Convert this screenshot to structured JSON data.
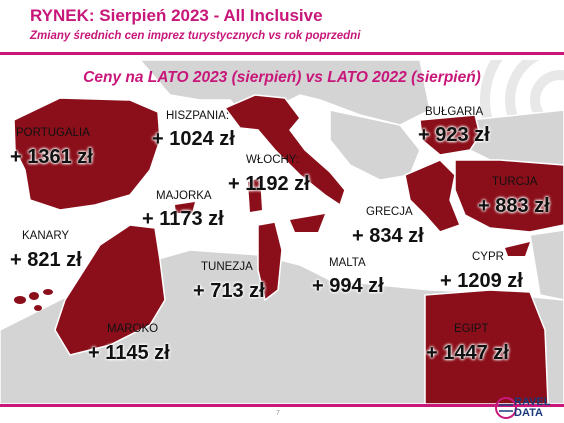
{
  "header": {
    "title": "RYNEK: Sierpień 2023 - All Inclusive",
    "subtitle": "Zmiany średnich cen imprez turystycznych vs rok poprzedni"
  },
  "map_title": "Ceny na LATO 2023 (sierpień) vs  LATO 2022 (sierpień)",
  "colors": {
    "accent": "#c8177a",
    "country": "#8b0f1a",
    "land": "#d4d4d4",
    "sea": "#ffffff"
  },
  "countries": [
    {
      "name": "PORTUGALIA",
      "value": "+ 1361 zł"
    },
    {
      "name": "HISZPANIA:",
      "value": "+ 1024 zł"
    },
    {
      "name": "WŁOCHY:",
      "value": "+ 1192 zł"
    },
    {
      "name": "MAJORKA",
      "value": "+ 1173 zł"
    },
    {
      "name": "BUŁGARIA",
      "value": "+ 923 zł"
    },
    {
      "name": "TURCJA",
      "value": "+ 883 zł"
    },
    {
      "name": "GRECJA",
      "value": "+ 834 zł"
    },
    {
      "name": "KANARY",
      "value": "+ 821 zł"
    },
    {
      "name": "TUNEZJA",
      "value": "+ 713 zł"
    },
    {
      "name": "MALTA",
      "value": "+ 994 zł"
    },
    {
      "name": "CYPR",
      "value": "+ 1209 zł"
    },
    {
      "name": "MAROKO",
      "value": "+ 1145 zł"
    },
    {
      "name": "EGIPT",
      "value": "+ 1447 zł"
    }
  ],
  "footer": {
    "page_number": "7",
    "logo_top": "RAVEL",
    "logo_bottom": "DATA"
  }
}
